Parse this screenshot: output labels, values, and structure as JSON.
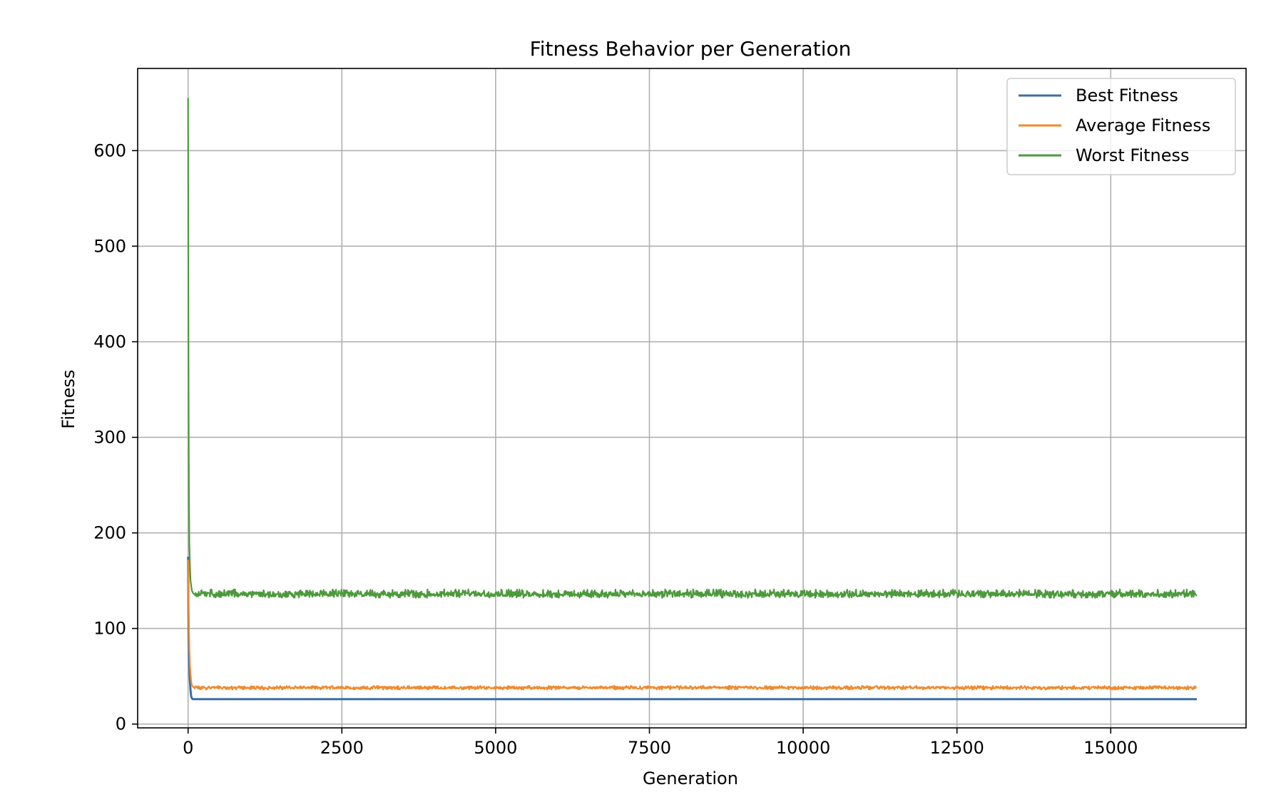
{
  "chart_data": {
    "type": "line",
    "title": "Fitness Behavior per Generation",
    "xlabel": "Generation",
    "ylabel": "Fitness",
    "xlim": [
      -820,
      17200
    ],
    "ylim": [
      -4,
      686
    ],
    "x_ticks": [
      0,
      2500,
      5000,
      7500,
      10000,
      12500,
      15000
    ],
    "y_ticks": [
      0,
      100,
      200,
      300,
      400,
      500,
      600
    ],
    "grid": true,
    "legend_position": "top-right",
    "generations": 16400,
    "series": [
      {
        "name": "Best Fitness",
        "color": "#3a6fa8",
        "points": [
          [
            0,
            175
          ],
          [
            5,
            120
          ],
          [
            10,
            90
          ],
          [
            20,
            60
          ],
          [
            30,
            45
          ],
          [
            40,
            35
          ],
          [
            50,
            29
          ],
          [
            60,
            27
          ],
          [
            80,
            26
          ],
          [
            16400,
            26
          ]
        ]
      },
      {
        "name": "Average Fitness",
        "color": "#f08a2e",
        "points": [
          [
            0,
            172
          ],
          [
            5,
            140
          ],
          [
            10,
            110
          ],
          [
            20,
            80
          ],
          [
            30,
            62
          ],
          [
            40,
            52
          ],
          [
            50,
            45
          ],
          [
            60,
            41
          ],
          [
            80,
            39
          ],
          [
            100,
            38
          ],
          [
            16400,
            38
          ]
        ],
        "noise_band": [
          36,
          40
        ]
      },
      {
        "name": "Worst Fitness",
        "color": "#4c9a3c",
        "points": [
          [
            0,
            655
          ],
          [
            3,
            520
          ],
          [
            6,
            400
          ],
          [
            10,
            300
          ],
          [
            15,
            230
          ],
          [
            20,
            190
          ],
          [
            30,
            165
          ],
          [
            40,
            150
          ],
          [
            60,
            140
          ],
          [
            80,
            137
          ],
          [
            100,
            136
          ],
          [
            16400,
            136
          ]
        ],
        "noise_band": [
          132,
          141
        ]
      }
    ]
  }
}
